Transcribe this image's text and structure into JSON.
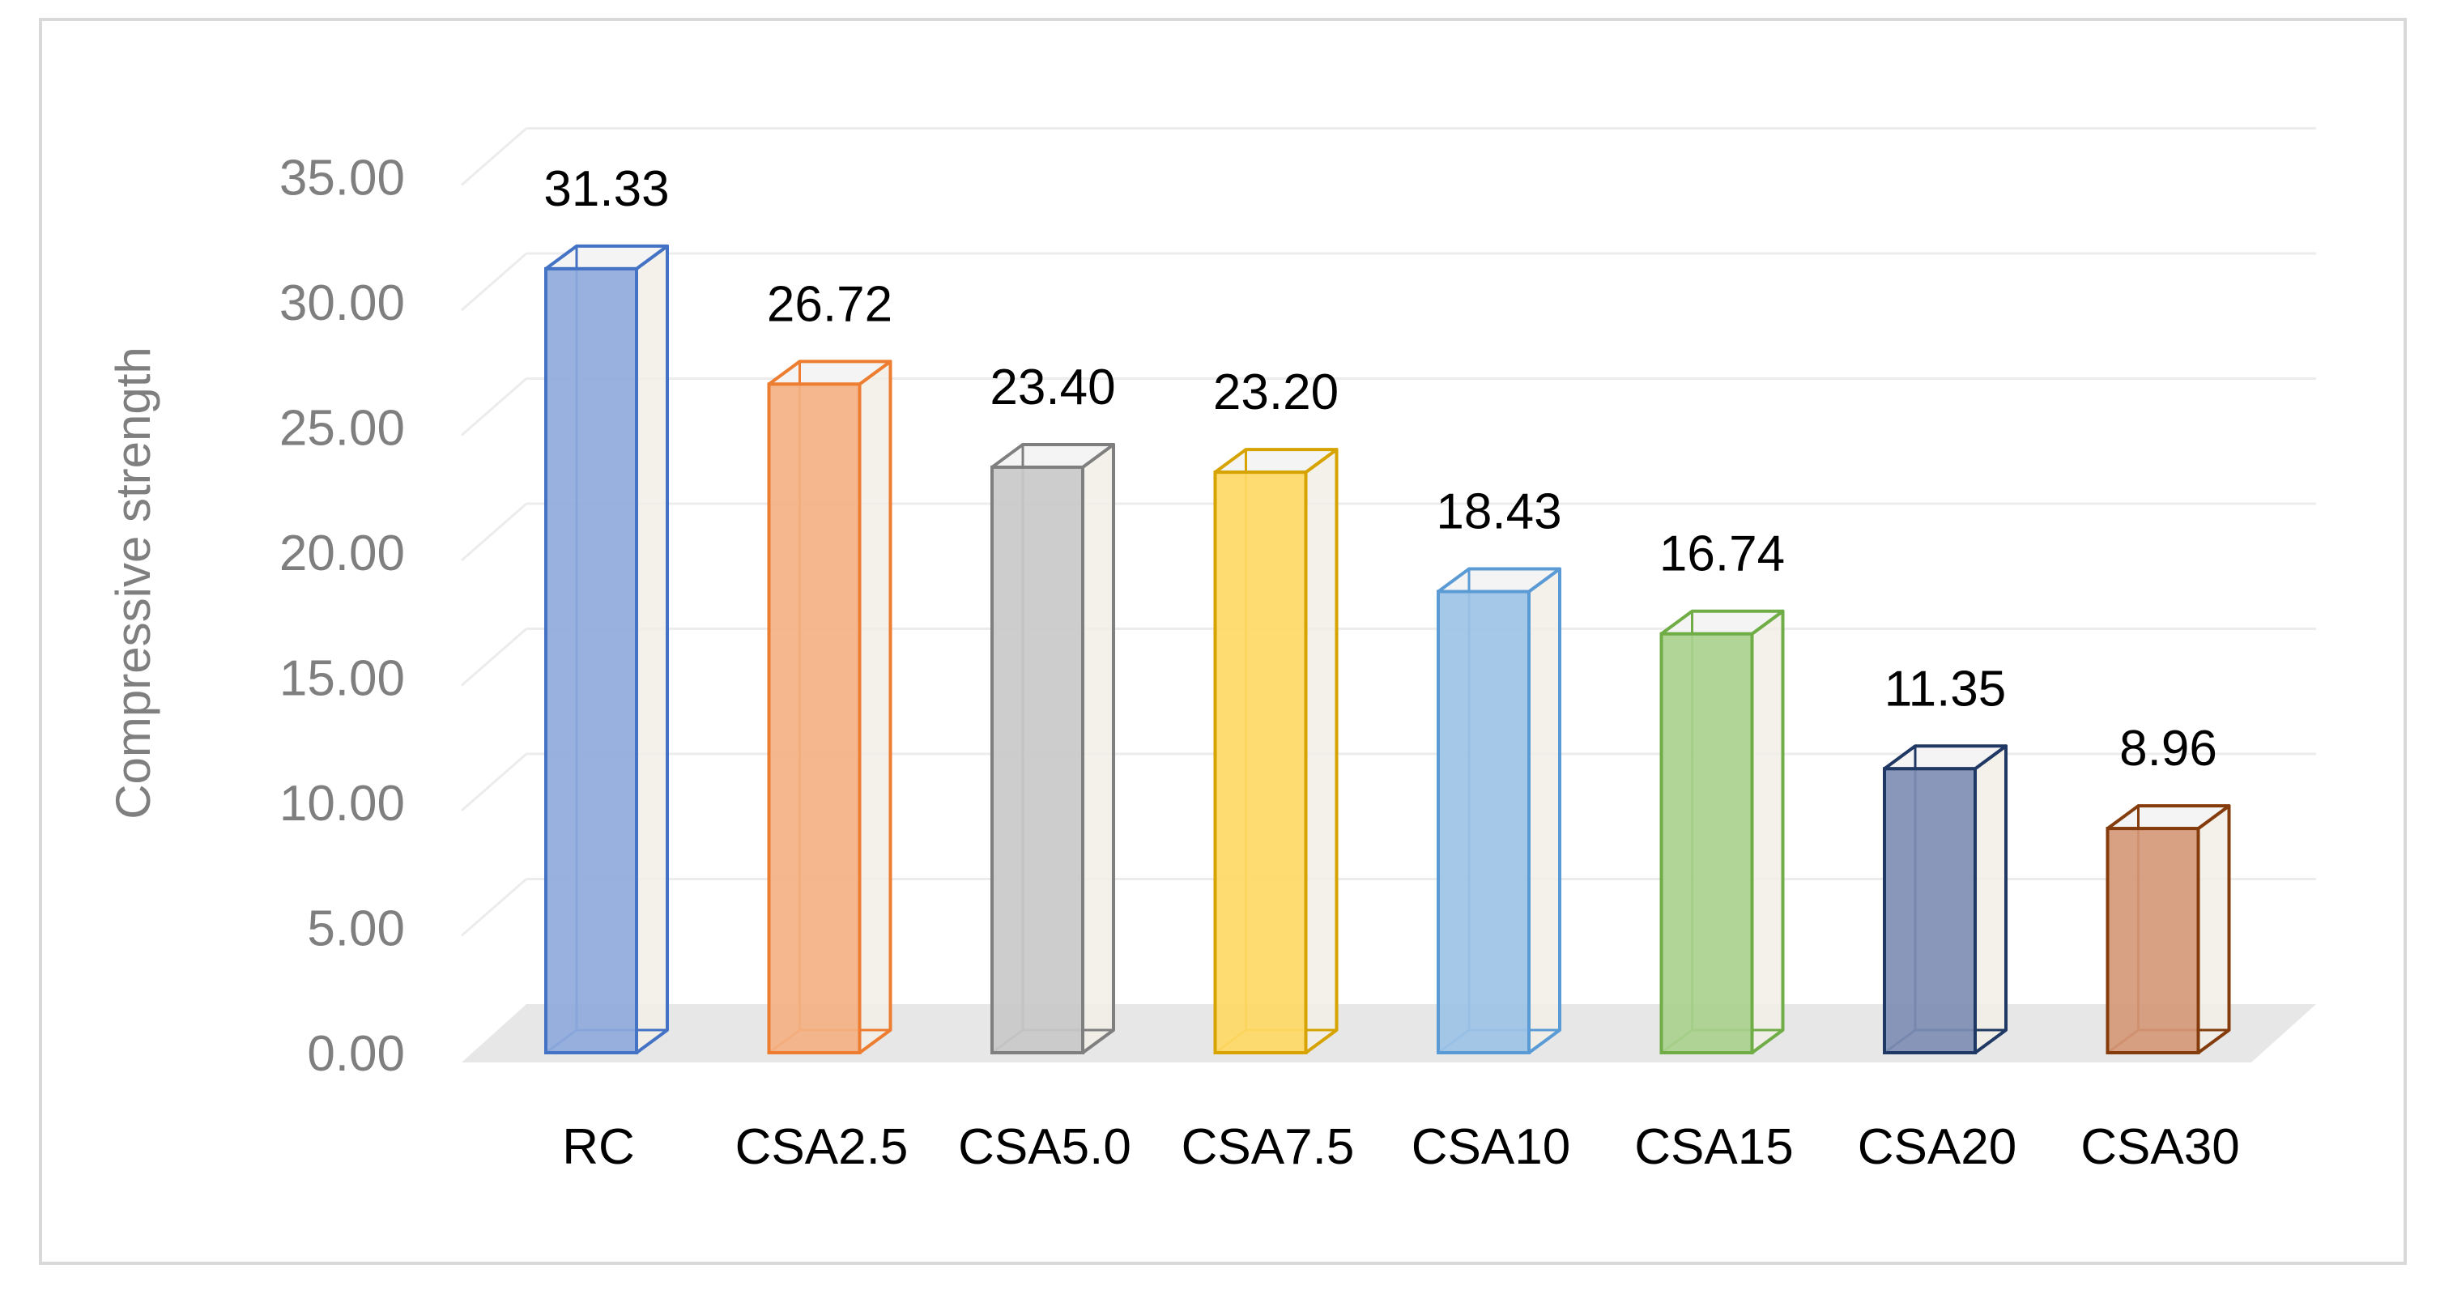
{
  "chart_data": {
    "type": "bar",
    "style": "3d-column",
    "title": "",
    "xlabel": "",
    "ylabel": "Compressive strength",
    "ylim": [
      0,
      35
    ],
    "ytick_step": 5,
    "ytick_labels": [
      "0.00",
      "5.00",
      "10.00",
      "15.00",
      "20.00",
      "25.00",
      "30.00",
      "35.00"
    ],
    "grid": true,
    "legend": "none",
    "categories": [
      "RC",
      "CSA2.5",
      "CSA5.0",
      "CSA7.5",
      "CSA10",
      "CSA15",
      "CSA20",
      "CSA30"
    ],
    "values": [
      31.33,
      26.72,
      23.4,
      23.2,
      18.43,
      16.74,
      11.35,
      8.96
    ],
    "value_labels": [
      "31.33",
      "26.72",
      "23.40",
      "23.20",
      "18.43",
      "16.74",
      "11.35",
      "8.96"
    ],
    "colors": [
      {
        "fill": "#8faadc",
        "stroke": "#4472c4"
      },
      {
        "fill": "#f4b183",
        "stroke": "#ed7d31"
      },
      {
        "fill": "#c9c9c9",
        "stroke": "#7f7f7f"
      },
      {
        "fill": "#ffd966",
        "stroke": "#d6a300"
      },
      {
        "fill": "#9dc3e6",
        "stroke": "#5b9bd5"
      },
      {
        "fill": "#a9d18e",
        "stroke": "#70ad47"
      },
      {
        "fill": "#7f8fb4",
        "stroke": "#203864"
      },
      {
        "fill": "#d6997a",
        "stroke": "#843c0c"
      }
    ]
  }
}
